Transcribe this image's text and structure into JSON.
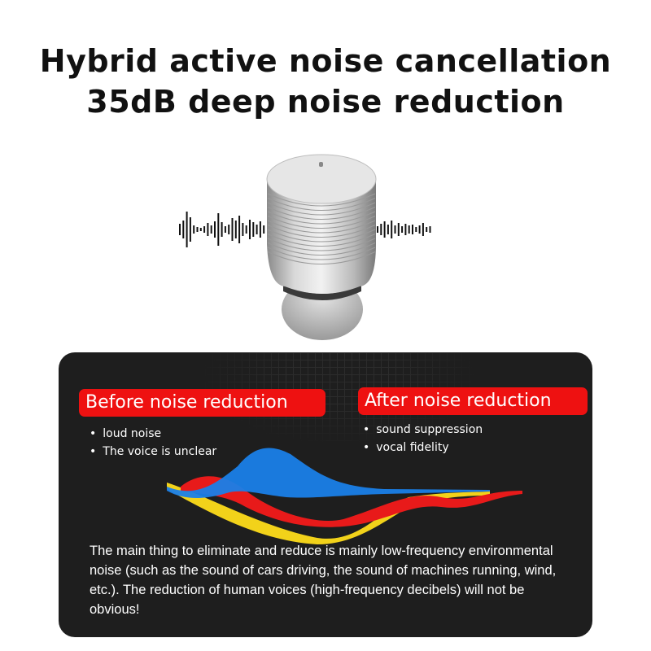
{
  "headline": {
    "line1": "Hybrid active noise cancellation",
    "line2": "35dB deep noise reduction"
  },
  "product": {
    "icon": "earbud-with-sound-waves"
  },
  "panel": {
    "before": {
      "label": "Before noise reduction",
      "bullets": [
        "loud noise",
        "The voice is unclear"
      ]
    },
    "after": {
      "label": "After noise reduction",
      "bullets": [
        "sound suppression",
        "vocal fidelity"
      ]
    },
    "description": "The main thing to eliminate and reduce is mainly low-frequency environmental noise (such as the sound of cars driving, the sound of machines running, wind, etc.). The reduction of human voices (high-frequency decibels) will not be obvious!"
  },
  "colors": {
    "label_bg": "#ee1111",
    "panel_bg": "#1e1e1e",
    "wave_blue": "#1a7fe8",
    "wave_red": "#e81a1a",
    "wave_yellow": "#f2d21a"
  }
}
